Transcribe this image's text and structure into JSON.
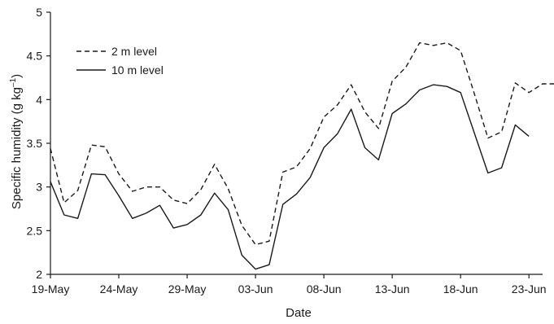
{
  "chart_data": {
    "type": "line",
    "title": "",
    "xlabel": "Date",
    "ylabel": "Specific humidity (g kg",
    "ylabel_superscript": "–1",
    "ylabel_close": ")",
    "ylim": [
      2,
      5
    ],
    "yticks": [
      2,
      2.5,
      3,
      3.5,
      4,
      4.5,
      5
    ],
    "ytick_labels": [
      "2",
      "2.5",
      "3",
      "3.5",
      "4",
      "4.5",
      "5"
    ],
    "xlim": [
      "2023-05-19",
      "2023-06-24"
    ],
    "xtick_labels": [
      "19-May",
      "24-May",
      "29-May",
      "03-Jun",
      "08-Jun",
      "13-Jun",
      "18-Jun",
      "23-Jun"
    ],
    "xticks": [
      "2023-05-19",
      "2023-05-24",
      "2023-05-29",
      "2023-06-03",
      "2023-06-08",
      "2023-06-13",
      "2023-06-18",
      "2023-06-23"
    ],
    "grid": false,
    "legend_position": "top-left",
    "x": [
      "2023-05-19",
      "2023-05-20",
      "2023-05-21",
      "2023-05-22",
      "2023-05-23",
      "2023-05-24",
      "2023-05-25",
      "2023-05-26",
      "2023-05-27",
      "2023-05-28",
      "2023-05-29",
      "2023-05-30",
      "2023-05-31",
      "2023-06-01",
      "2023-06-02",
      "2023-06-03",
      "2023-06-04",
      "2023-06-05",
      "2023-06-06",
      "2023-06-07",
      "2023-06-08",
      "2023-06-09",
      "2023-06-10",
      "2023-06-11",
      "2023-06-12",
      "2023-06-13",
      "2023-06-14",
      "2023-06-15",
      "2023-06-16",
      "2023-06-17",
      "2023-06-18",
      "2023-06-19",
      "2023-06-20",
      "2023-06-21",
      "2023-06-22",
      "2023-06-23",
      "2023-06-24",
      "2023-06-25"
    ],
    "series": [
      {
        "name": "2 m level",
        "style": "dashed",
        "color": "#1a1a1a",
        "values": [
          3.44,
          2.82,
          2.96,
          3.48,
          3.46,
          3.15,
          2.95,
          3.0,
          3.0,
          2.85,
          2.81,
          2.97,
          3.26,
          2.98,
          2.56,
          2.34,
          2.38,
          3.17,
          3.23,
          3.44,
          3.8,
          3.94,
          4.17,
          3.86,
          3.67,
          4.21,
          4.37,
          4.65,
          4.62,
          4.65,
          4.56,
          4.07,
          3.56,
          3.63,
          4.19,
          4.08,
          4.18,
          4.18
        ]
      },
      {
        "name": "10 m level",
        "style": "solid",
        "color": "#1a1a1a",
        "values": [
          3.06,
          2.68,
          2.64,
          3.15,
          3.14,
          2.9,
          2.64,
          2.7,
          2.79,
          2.53,
          2.57,
          2.68,
          2.93,
          2.74,
          2.22,
          2.06,
          2.11,
          2.8,
          2.92,
          3.11,
          3.45,
          3.61,
          3.89,
          3.45,
          3.31,
          3.84,
          3.95,
          4.11,
          4.17,
          4.15,
          4.08,
          3.62,
          3.16,
          3.22,
          3.71,
          3.58,
          null,
          null
        ]
      }
    ]
  }
}
